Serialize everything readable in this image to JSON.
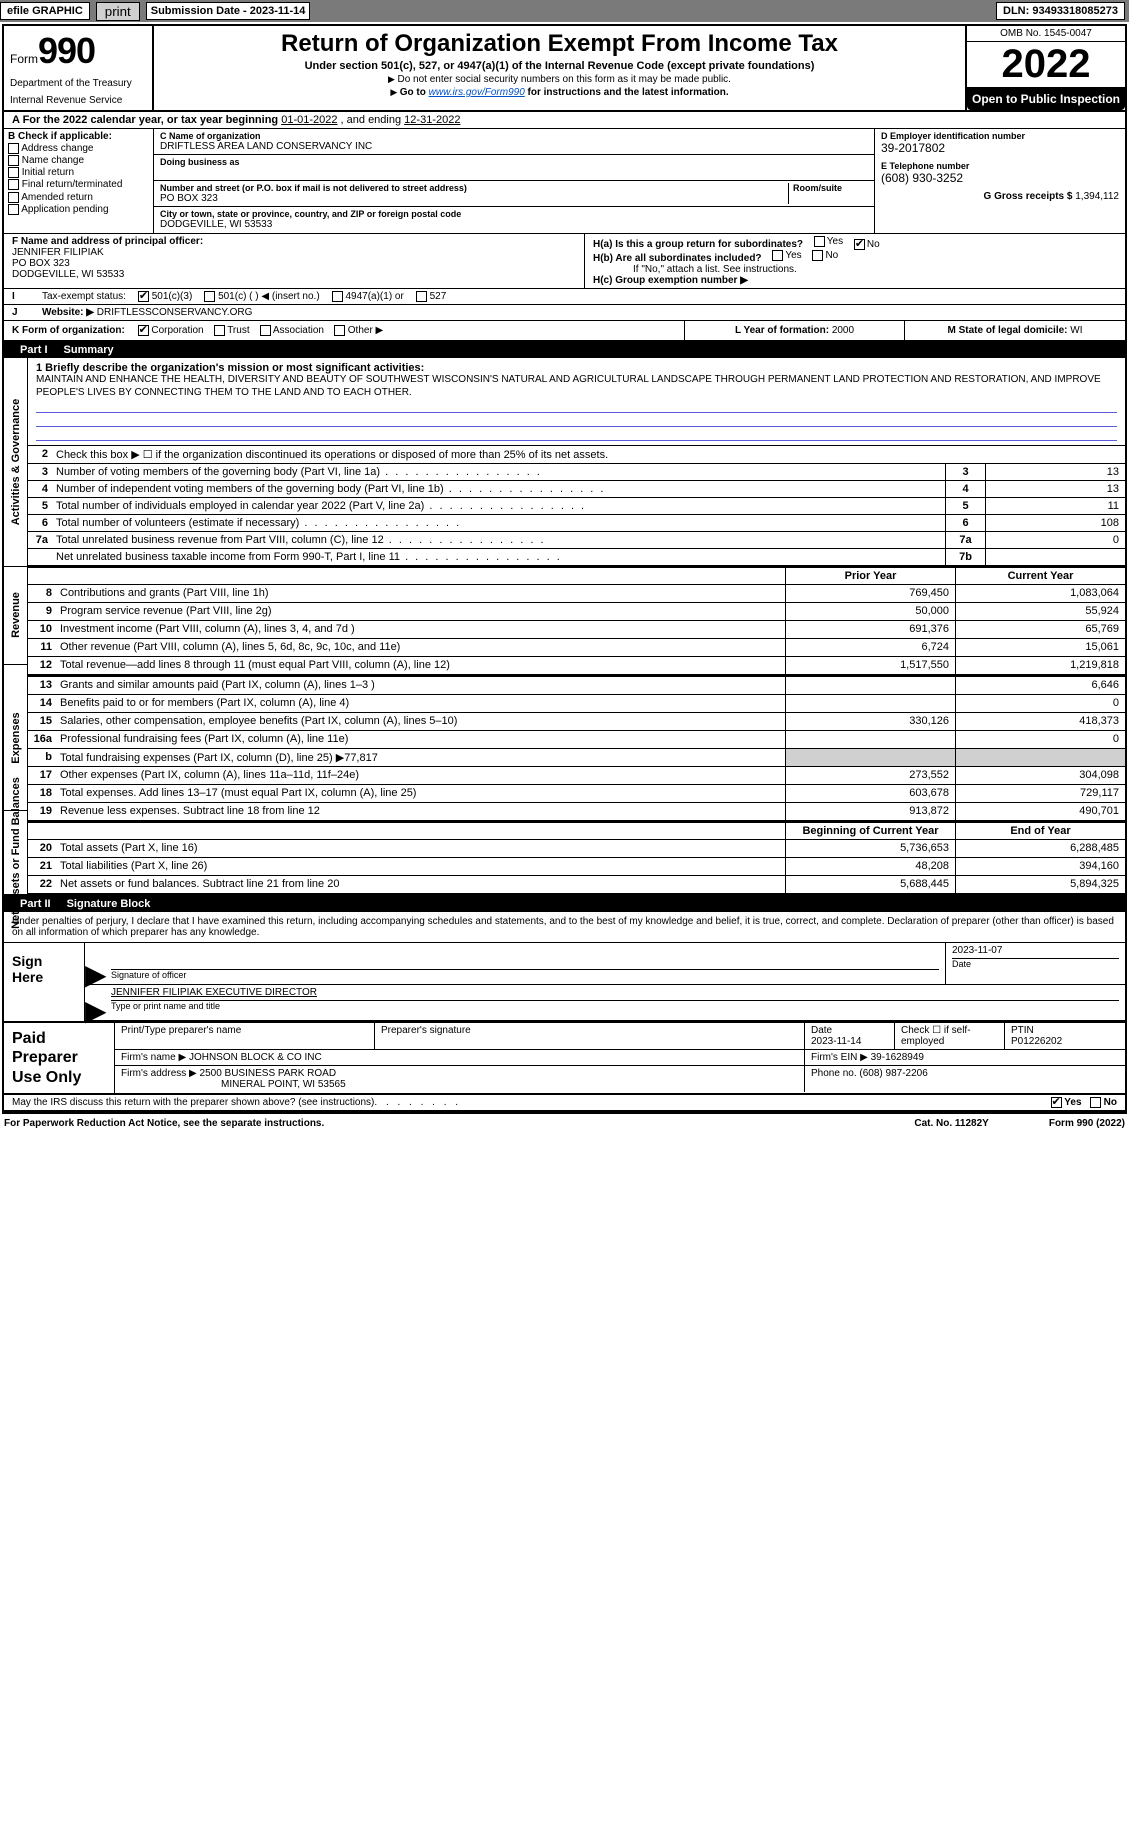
{
  "topbar": {
    "efile": "efile GRAPHIC",
    "print": "print",
    "submission_label": "Submission Date - 2023-11-14",
    "dln": "DLN: 93493318085273"
  },
  "header": {
    "form_label": "Form",
    "form_num": "990",
    "title": "Return of Organization Exempt From Income Tax",
    "subtitle": "Under section 501(c), 527, or 4947(a)(1) of the Internal Revenue Code (except private foundations)",
    "ssn_note": "Do not enter social security numbers on this form as it may be made public.",
    "goto": "Go to ",
    "goto_link": "www.irs.gov/Form990",
    "goto_tail": " for instructions and the latest information.",
    "dept": "Department of the Treasury",
    "irs": "Internal Revenue Service",
    "omb": "OMB No. 1545-0047",
    "year": "2022",
    "open": "Open to Public Inspection"
  },
  "period": {
    "a_label": "A For the 2022 calendar year, or tax year beginning ",
    "begin": "01-01-2022",
    "mid": " , and ending ",
    "end": "12-31-2022"
  },
  "boxB": {
    "title": "B Check if applicable:",
    "opts": [
      "Address change",
      "Name change",
      "Initial return",
      "Final return/terminated",
      "Amended return",
      "Application pending"
    ]
  },
  "boxC": {
    "name_lbl": "C Name of organization",
    "name": "DRIFTLESS AREA LAND CONSERVANCY INC",
    "dba_lbl": "Doing business as",
    "dba": "",
    "street_lbl": "Number and street (or P.O. box if mail is not delivered to street address)",
    "room_lbl": "Room/suite",
    "street": "PO BOX 323",
    "city_lbl": "City or town, state or province, country, and ZIP or foreign postal code",
    "city": "DODGEVILLE, WI  53533"
  },
  "boxD": {
    "ein_lbl": "D Employer identification number",
    "ein": "39-2017802",
    "phone_lbl": "E Telephone number",
    "phone": "(608) 930-3252",
    "gross_lbl": "G Gross receipts $",
    "gross": "1,394,112"
  },
  "boxF": {
    "lbl": "F  Name and address of principal officer:",
    "name": "JENNIFER FILIPIAK",
    "addr1": "PO BOX 323",
    "addr2": "DODGEVILLE, WI  53533"
  },
  "boxH": {
    "ha": "H(a)  Is this a group return for subordinates?",
    "hb": "H(b)  Are all subordinates included?",
    "hb_note": "If \"No,\" attach a list. See instructions.",
    "hc": "H(c)  Group exemption number ▶",
    "yes": "Yes",
    "no": "No"
  },
  "boxI": {
    "lbl": "Tax-exempt status:",
    "o1": "501(c)(3)",
    "o2": "501(c) (  ) ◀ (insert no.)",
    "o3": "4947(a)(1) or",
    "o4": "527"
  },
  "boxJ": {
    "lbl": "Website: ▶",
    "val": "DRIFTLESSCONSERVANCY.ORG"
  },
  "boxK": {
    "lbl": "K Form of organization:",
    "opts": [
      "Corporation",
      "Trust",
      "Association",
      "Other ▶"
    ]
  },
  "boxL": {
    "lbl": "L Year of formation: ",
    "val": "2000"
  },
  "boxM": {
    "lbl": "M State of legal domicile: ",
    "val": "WI"
  },
  "parts": {
    "p1": "Part I",
    "p1t": "Summary",
    "p2": "Part II",
    "p2t": "Signature Block"
  },
  "mission": {
    "q": "1  Briefly describe the organization's mission or most significant activities:",
    "text": "MAINTAIN AND ENHANCE THE HEALTH, DIVERSITY AND BEAUTY OF SOUTHWEST WISCONSIN'S NATURAL AND AGRICULTURAL LANDSCAPE THROUGH PERMANENT LAND PROTECTION AND RESTORATION, AND IMPROVE PEOPLE'S LIVES BY CONNECTING THEM TO THE LAND AND TO EACH OTHER."
  },
  "gov": {
    "vlabel": "Activities & Governance",
    "l2": "Check this box ▶ ☐ if the organization discontinued its operations or disposed of more than 25% of its net assets.",
    "rows": [
      {
        "n": "3",
        "d": "Number of voting members of the governing body (Part VI, line 1a)",
        "bn": "3",
        "v": "13"
      },
      {
        "n": "4",
        "d": "Number of independent voting members of the governing body (Part VI, line 1b)",
        "bn": "4",
        "v": "13"
      },
      {
        "n": "5",
        "d": "Total number of individuals employed in calendar year 2022 (Part V, line 2a)",
        "bn": "5",
        "v": "11"
      },
      {
        "n": "6",
        "d": "Total number of volunteers (estimate if necessary)",
        "bn": "6",
        "v": "108"
      },
      {
        "n": "7a",
        "d": "Total unrelated business revenue from Part VIII, column (C), line 12",
        "bn": "7a",
        "v": "0"
      },
      {
        "n": "",
        "d": "Net unrelated business taxable income from Form 990-T, Part I, line 11",
        "bn": "7b",
        "v": ""
      }
    ]
  },
  "rev": {
    "vlabel": "Revenue",
    "hdr_prior": "Prior Year",
    "hdr_curr": "Current Year",
    "rows": [
      {
        "n": "8",
        "d": "Contributions and grants (Part VIII, line 1h)",
        "p": "769,450",
        "c": "1,083,064"
      },
      {
        "n": "9",
        "d": "Program service revenue (Part VIII, line 2g)",
        "p": "50,000",
        "c": "55,924"
      },
      {
        "n": "10",
        "d": "Investment income (Part VIII, column (A), lines 3, 4, and 7d )",
        "p": "691,376",
        "c": "65,769"
      },
      {
        "n": "11",
        "d": "Other revenue (Part VIII, column (A), lines 5, 6d, 8c, 9c, 10c, and 11e)",
        "p": "6,724",
        "c": "15,061"
      },
      {
        "n": "12",
        "d": "Total revenue—add lines 8 through 11 (must equal Part VIII, column (A), line 12)",
        "p": "1,517,550",
        "c": "1,219,818"
      }
    ]
  },
  "exp": {
    "vlabel": "Expenses",
    "rows": [
      {
        "n": "13",
        "d": "Grants and similar amounts paid (Part IX, column (A), lines 1–3 )",
        "p": "",
        "c": "6,646"
      },
      {
        "n": "14",
        "d": "Benefits paid to or for members (Part IX, column (A), line 4)",
        "p": "",
        "c": "0"
      },
      {
        "n": "15",
        "d": "Salaries, other compensation, employee benefits (Part IX, column (A), lines 5–10)",
        "p": "330,126",
        "c": "418,373"
      },
      {
        "n": "16a",
        "d": "Professional fundraising fees (Part IX, column (A), line 11e)",
        "p": "",
        "c": "0"
      },
      {
        "n": "b",
        "d": "Total fundraising expenses (Part IX, column (D), line 25) ▶77,817",
        "p": "SHADE",
        "c": "SHADE"
      },
      {
        "n": "17",
        "d": "Other expenses (Part IX, column (A), lines 11a–11d, 11f–24e)",
        "p": "273,552",
        "c": "304,098"
      },
      {
        "n": "18",
        "d": "Total expenses. Add lines 13–17 (must equal Part IX, column (A), line 25)",
        "p": "603,678",
        "c": "729,117"
      },
      {
        "n": "19",
        "d": "Revenue less expenses. Subtract line 18 from line 12",
        "p": "913,872",
        "c": "490,701"
      }
    ]
  },
  "net": {
    "vlabel": "Net Assets or Fund Balances",
    "hdr_prior": "Beginning of Current Year",
    "hdr_curr": "End of Year",
    "rows": [
      {
        "n": "20",
        "d": "Total assets (Part X, line 16)",
        "p": "5,736,653",
        "c": "6,288,485"
      },
      {
        "n": "21",
        "d": "Total liabilities (Part X, line 26)",
        "p": "48,208",
        "c": "394,160"
      },
      {
        "n": "22",
        "d": "Net assets or fund balances. Subtract line 21 from line 20",
        "p": "5,688,445",
        "c": "5,894,325"
      }
    ]
  },
  "sig": {
    "intro": "Under penalties of perjury, I declare that I have examined this return, including accompanying schedules and statements, and to the best of my knowledge and belief, it is true, correct, and complete. Declaration of preparer (other than officer) is based on all information of which preparer has any knowledge.",
    "sign_here": "Sign Here",
    "sig_officer": "Signature of officer",
    "date_lbl": "Date",
    "date": "2023-11-07",
    "name": "JENNIFER FILIPIAK  EXECUTIVE DIRECTOR",
    "name_lbl": "Type or print name and title"
  },
  "paid": {
    "title": "Paid Preparer Use Only",
    "h_name": "Print/Type preparer's name",
    "h_sig": "Preparer's signature",
    "h_date": "Date",
    "date": "2023-11-14",
    "h_self": "Check ☐ if self-employed",
    "h_ptin": "PTIN",
    "ptin": "P01226202",
    "firm_lbl": "Firm's name    ▶",
    "firm": "JOHNSON BLOCK & CO INC",
    "ein_lbl": "Firm's EIN ▶",
    "ein": "39-1628949",
    "addr_lbl": "Firm's address ▶",
    "addr1": "2500 BUSINESS PARK ROAD",
    "addr2": "MINERAL POINT, WI  53565",
    "phone_lbl": "Phone no.",
    "phone": "(608) 987-2206"
  },
  "discuss": {
    "q": "May the IRS discuss this return with the preparer shown above? (see instructions)",
    "yes": "Yes",
    "no": "No"
  },
  "footer": {
    "pra": "For Paperwork Reduction Act Notice, see the separate instructions.",
    "cat": "Cat. No. 11282Y",
    "form": "Form 990 (2022)"
  }
}
